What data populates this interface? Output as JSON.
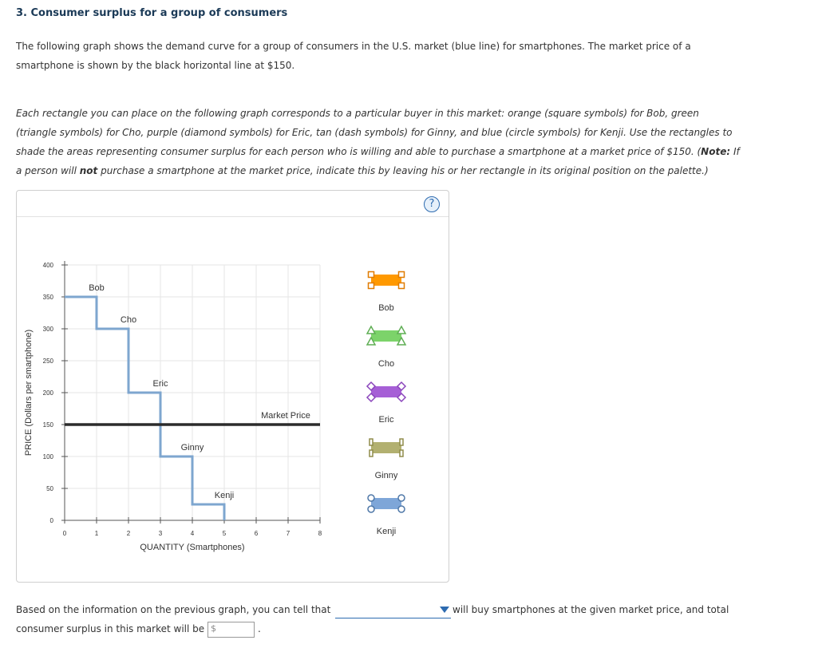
{
  "question": {
    "title": "3. Consumer surplus for a group of consumers",
    "intro_line1": "The following graph shows the demand curve for a group of consumers in the U.S. market (blue line) for smartphones. The market price of a",
    "intro_line2": "smartphone is shown by the black horizontal line at $150.",
    "instr_line1": "Each rectangle you can place on the following graph corresponds to a particular buyer in this market: orange (square symbols) for Bob, green",
    "instr_line2": "(triangle symbols) for Cho, purple (diamond symbols) for Eric, tan (dash symbols) for Ginny, and blue (circle symbols) for Kenji. Use the rectangles to",
    "instr_line3a": "shade the areas representing consumer surplus for each person who is willing and able to purchase a smartphone at a market price of $150. (",
    "instr_note": "Note:",
    "instr_line3b": " If",
    "instr_line4a": "a person will ",
    "instr_not": "not",
    "instr_line4b": " purchase a smartphone at the market price, indicate this by leaving his or her rectangle in its original position on the palette.)"
  },
  "help_label": "?",
  "chart_data": {
    "type": "line",
    "xlabel": "QUANTITY (Smartphones)",
    "ylabel": "PRICE (Dollars per smartphone)",
    "xlim": [
      0,
      8
    ],
    "ylim": [
      0,
      400
    ],
    "xticks": [
      0,
      1,
      2,
      3,
      4,
      5,
      6,
      7,
      8
    ],
    "yticks": [
      0,
      50,
      100,
      150,
      200,
      250,
      300,
      350,
      400
    ],
    "demand_steps": [
      {
        "label": "Bob",
        "price": 350,
        "from": 0,
        "to": 1
      },
      {
        "label": "Cho",
        "price": 300,
        "from": 1,
        "to": 2
      },
      {
        "label": "Eric",
        "price": 200,
        "from": 2,
        "to": 3
      },
      {
        "label": "Ginny",
        "price": 100,
        "from": 3,
        "to": 4
      },
      {
        "label": "Kenji",
        "price": 25,
        "from": 4,
        "to": 5
      }
    ],
    "market_price": {
      "label": "Market Price",
      "value": 150
    },
    "colors": {
      "demand": "#7ea6cf",
      "market": "#2b2b2b",
      "grid": "#e6e6e6"
    }
  },
  "palette": [
    {
      "name": "Bob",
      "symbol": "square",
      "color": "#ff9900",
      "stroke": "#e07b00"
    },
    {
      "name": "Cho",
      "symbol": "triangle",
      "color": "#7cd36a",
      "stroke": "#5fae54"
    },
    {
      "name": "Eric",
      "symbol": "diamond",
      "color": "#a65fd6",
      "stroke": "#8a44bb"
    },
    {
      "name": "Ginny",
      "symbol": "dash",
      "color": "#b2b070",
      "stroke": "#8f8c4a"
    },
    {
      "name": "Kenji",
      "symbol": "circle",
      "color": "#7ea6d8",
      "stroke": "#4f78a8"
    }
  ],
  "answer": {
    "prefix": "Based on the information on the previous graph, you can tell that",
    "dropdown_value": "",
    "suffix": "will buy smartphones at the given market price, and total",
    "line2": "consumer surplus in this market will be",
    "currency_placeholder": "$",
    "period": "."
  }
}
